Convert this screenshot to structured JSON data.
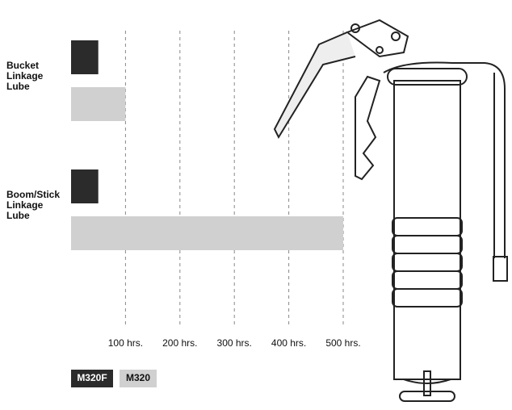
{
  "chart_data": {
    "type": "bar",
    "categories": [
      "Bucket Linkage Lube",
      "Boom/Stick Linkage Lube"
    ],
    "series": [
      {
        "name": "M320F",
        "color": "#2b2b2b",
        "values": [
          50,
          50
        ]
      },
      {
        "name": "M320",
        "color": "#d0d0d0",
        "values": [
          100,
          500
        ]
      }
    ],
    "xlim": [
      0,
      500
    ],
    "xticks": [
      {
        "value": 100,
        "label": "100 hrs."
      },
      {
        "value": 200,
        "label": "200 hrs."
      },
      {
        "value": 300,
        "label": "300 hrs."
      },
      {
        "value": 400,
        "label": "400 hrs."
      },
      {
        "value": 500,
        "label": "500 hrs."
      }
    ],
    "grid": true
  }
}
